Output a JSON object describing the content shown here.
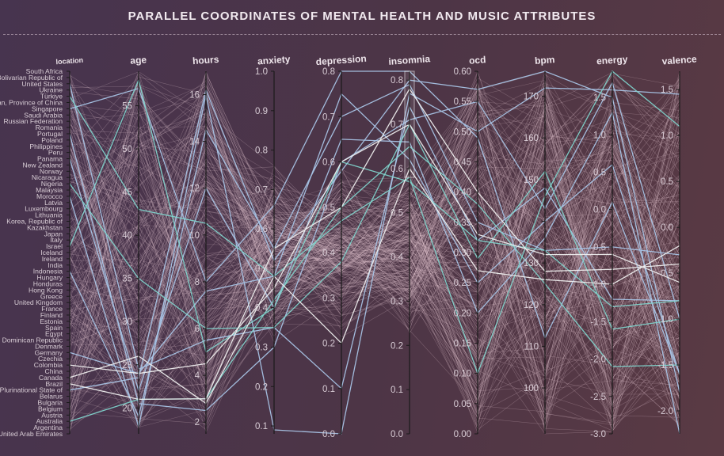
{
  "title": "PARALLEL COORDINATES OF MENTAL HEALTH AND MUSIC ATTRIBUTES",
  "chart_data": {
    "type": "parallel_coordinates",
    "title": "PARALLEL COORDINATES OF MENTAL HEALTH AND MUSIC ATTRIBUTES",
    "axes": [
      {
        "key": "location",
        "label": "location",
        "type": "categorical",
        "categories": [
          "United Arab Emirates",
          "Argentina",
          "Australia",
          "Austria",
          "Belgium",
          "Bulgaria",
          "Belarus",
          "Bolivia, Plurinational State of",
          "Brazil",
          "Canada",
          "China",
          "Colombia",
          "Czechia",
          "Germany",
          "Denmark",
          "Dominican Republic",
          "Egypt",
          "Spain",
          "Estonia",
          "Finland",
          "France",
          "United Kingdom",
          "Greece",
          "Hong Kong",
          "Honduras",
          "Hungary",
          "Indonesia",
          "India",
          "Ireland",
          "Iceland",
          "Israel",
          "Italy",
          "Japan",
          "Kazakhstan",
          "Korea, Republic of",
          "Lithuania",
          "Luxembourg",
          "Latvia",
          "Morocco",
          "Malaysia",
          "Nigeria",
          "Nicaragua",
          "Norway",
          "New Zealand",
          "Panama",
          "Peru",
          "Philippines",
          "Poland",
          "Portugal",
          "Romania",
          "Russian Federation",
          "Saudi Arabia",
          "Singapore",
          "Taiwan, Province of China",
          "Türkiye",
          "Ukraine",
          "United States",
          "Venezuela, Bolivarian Republic of",
          "South Africa"
        ]
      },
      {
        "key": "age",
        "label": "age",
        "type": "numeric",
        "range": [
          17,
          59
        ],
        "ticks": [
          20,
          25,
          30,
          35,
          40,
          45,
          50,
          55
        ]
      },
      {
        "key": "hours",
        "label": "hours",
        "type": "numeric",
        "range": [
          1.5,
          17
        ],
        "ticks": [
          2,
          4,
          6,
          8,
          10,
          12,
          14,
          16
        ]
      },
      {
        "key": "anxiety",
        "label": "anxiety",
        "type": "numeric",
        "range": [
          0.08,
          1.0
        ],
        "ticks": [
          0.1,
          0.2,
          0.3,
          0.4,
          0.5,
          0.6,
          0.7,
          0.8,
          0.9,
          1.0
        ],
        "tick_labels": [
          "0.1",
          "0.2",
          "0.3",
          "0.4",
          "0.5",
          "0.6",
          "0.7",
          "0.8",
          "0.9",
          "1.0"
        ]
      },
      {
        "key": "depression",
        "label": "depression",
        "type": "numeric",
        "range": [
          0.0,
          0.8
        ],
        "ticks": [
          0.0,
          0.1,
          0.2,
          0.3,
          0.4,
          0.5,
          0.6,
          0.7,
          0.8
        ],
        "tick_labels": [
          "0.0",
          "0.1",
          "0.2",
          "0.3",
          "0.4",
          "0.5",
          "0.6",
          "0.7",
          "0.8"
        ]
      },
      {
        "key": "insomnia",
        "label": "insomnia",
        "type": "numeric",
        "range": [
          0.0,
          0.82
        ],
        "ticks": [
          0.0,
          0.1,
          0.2,
          0.3,
          0.4,
          0.5,
          0.6,
          0.7,
          0.8
        ],
        "tick_labels": [
          "0.0",
          "0.1",
          "0.2",
          "0.3",
          "0.4",
          "0.5",
          "0.6",
          "0.7",
          "0.8"
        ]
      },
      {
        "key": "ocd",
        "label": "ocd",
        "type": "numeric",
        "range": [
          0.0,
          0.6
        ],
        "ticks": [
          0.0,
          0.05,
          0.1,
          0.15,
          0.2,
          0.25,
          0.3,
          0.35,
          0.4,
          0.45,
          0.5,
          0.55,
          0.6
        ],
        "tick_labels": [
          "0.00",
          "0.05",
          "0.10",
          "0.15",
          "0.20",
          "0.25",
          "0.30",
          "0.35",
          "0.40",
          "0.45",
          "0.50",
          "0.55",
          "0.60"
        ]
      },
      {
        "key": "bpm",
        "label": "bpm",
        "type": "numeric",
        "range": [
          89,
          176
        ],
        "ticks": [
          100,
          110,
          120,
          130,
          140,
          150,
          160,
          170
        ],
        "tick_labels": [
          "100",
          "110",
          "120",
          "130",
          "",
          "150",
          "160",
          "170"
        ]
      },
      {
        "key": "energy",
        "label": "energy",
        "type": "numeric",
        "range": [
          -3.0,
          1.85
        ],
        "ticks": [
          -3.0,
          -2.5,
          -2.0,
          -1.5,
          -1.0,
          -0.5,
          0.0,
          0.5,
          1.0,
          1.5
        ],
        "tick_labels": [
          "-3.0",
          "-2.5",
          "-2.0",
          "-1.5",
          "-1.0",
          "-0.5",
          "0.0",
          "0.5",
          "1.0",
          "1.5"
        ]
      },
      {
        "key": "valence",
        "label": "valence",
        "type": "numeric",
        "range": [
          -2.25,
          1.7
        ],
        "ticks": [
          -2.0,
          -1.5,
          -1.0,
          -0.5,
          0.0,
          0.5,
          1.0,
          1.5
        ],
        "tick_labels": [
          "-2.0",
          "-1.5",
          "-1.0",
          "-0.5",
          "0.0",
          "0.5",
          "1.0",
          "1.5"
        ]
      }
    ],
    "highlighted_records": [
      {
        "color": "#a8c4e6",
        "values": [
          38,
          17.8,
          16.0,
          0.09,
          0.0,
          0.77,
          0.5,
          172,
          1.6,
          1.45
        ]
      },
      {
        "color": "#a8c4e6",
        "values": [
          52,
          57.0,
          8.0,
          0.66,
          0.8,
          0.82,
          0.49,
          112,
          0.1,
          -1.6
        ]
      },
      {
        "color": "#a8c4e6",
        "values": [
          48,
          20.5,
          2.5,
          0.3,
          0.6,
          0.71,
          0.55,
          143,
          1.7,
          -1.0
        ]
      },
      {
        "color": "#a8c4e6",
        "values": [
          26,
          19.0,
          14.5,
          0.55,
          0.7,
          0.79,
          0.35,
          133,
          -0.5,
          -0.3
        ]
      },
      {
        "color": "#a8c4e6",
        "values": [
          44,
          22.0,
          12.0,
          0.4,
          0.65,
          0.66,
          0.2,
          136,
          1.3,
          -2.25
        ]
      },
      {
        "color": "#a8c4e6",
        "values": [
          13,
          24.0,
          7.6,
          0.48,
          0.75,
          0.62,
          0.25,
          140,
          0.6,
          -1.6
        ]
      },
      {
        "color": "#a8c4e6",
        "values": [
          56,
          24.5,
          5.5,
          0.35,
          0.1,
          0.74,
          0.32,
          148,
          -1.2,
          -0.8
        ]
      },
      {
        "color": "#a8c4e6",
        "values": [
          7,
          23.5,
          16.2,
          0.52,
          0.58,
          0.8,
          0.57,
          176,
          1.5,
          -1.8
        ]
      },
      {
        "color": "#7fd4cc",
        "values": [
          54,
          43.0,
          10.5,
          0.48,
          0.47,
          0.58,
          0.1,
          146,
          1.85,
          1.1
        ]
      },
      {
        "color": "#7fd4cc",
        "values": [
          40,
          35.0,
          6.0,
          0.35,
          0.38,
          0.7,
          0.29,
          152,
          -1.6,
          -1.0
        ]
      },
      {
        "color": "#7fd4cc",
        "values": [
          2,
          21.0,
          3.0,
          0.42,
          0.5,
          0.65,
          0.38,
          125,
          -2.1,
          -1.5
        ]
      },
      {
        "color": "#7fd4cc",
        "values": [
          30,
          58.0,
          5.0,
          0.4,
          0.6,
          0.57,
          0.32,
          133,
          -1.3,
          -0.8
        ]
      },
      {
        "color": "#eeeeee",
        "values": [
          9,
          26.0,
          2.8,
          0.48,
          0.2,
          0.6,
          0.27,
          126,
          -1.0,
          -0.2
        ]
      },
      {
        "color": "#eeeeee",
        "values": [
          8,
          21.0,
          3.0,
          0.55,
          0.5,
          0.78,
          0.4,
          128,
          -0.8,
          -0.4
        ]
      },
      {
        "color": "#eeeeee",
        "values": [
          11,
          24.0,
          4.5,
          0.45,
          0.6,
          0.7,
          0.33,
          132,
          -0.6,
          -0.6
        ]
      }
    ]
  }
}
